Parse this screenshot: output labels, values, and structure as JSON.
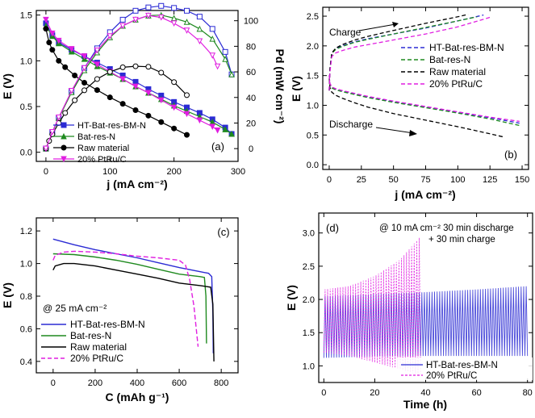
{
  "figure": "Four-panel electrochemical performance figure",
  "colors": {
    "ht": "#2b2bd4",
    "bat": "#1f8a1f",
    "raw": "#000000",
    "ptru": "#e01ee0",
    "ht_light": "#6c6cf0",
    "ptru_light": "#ff5cff"
  },
  "chart_data": [
    {
      "id": "a",
      "type": "line",
      "panel_label": "(a)",
      "xlabel": "j  (mA cm⁻²)",
      "ylabel": "E (V)",
      "y2label": "Pd (mW cm⁻²)",
      "xlim": [
        -15,
        300
      ],
      "ylim": [
        -0.1,
        1.55
      ],
      "y2lim": [
        -10,
        108
      ],
      "xticks": [
        0,
        100,
        200,
        300
      ],
      "yticks": [
        0.0,
        0.5,
        1.0,
        1.5
      ],
      "y2ticks": [
        0,
        20,
        40,
        60,
        80,
        100
      ],
      "legend": [
        "HT-Bat-res-BM-N",
        "Bat-res-N",
        "Raw material",
        "20% PtRu/C"
      ],
      "series": [
        {
          "name": "HT-Bat-res-BM-N",
          "color": "ht",
          "marker": "square",
          "axis": "left",
          "x": [
            0,
            10,
            20,
            40,
            60,
            80,
            100,
            120,
            140,
            160,
            180,
            200,
            220,
            240,
            260,
            280,
            290
          ],
          "y": [
            1.41,
            1.28,
            1.2,
            1.12,
            1.05,
            0.98,
            0.91,
            0.84,
            0.77,
            0.69,
            0.62,
            0.55,
            0.49,
            0.43,
            0.36,
            0.27,
            0.2
          ]
        },
        {
          "name": "Bat-res-N",
          "color": "bat",
          "marker": "triangle",
          "axis": "left",
          "x": [
            0,
            10,
            20,
            40,
            60,
            80,
            100,
            120,
            140,
            160,
            180,
            200,
            220,
            240,
            260,
            280,
            290
          ],
          "y": [
            1.38,
            1.27,
            1.19,
            1.1,
            1.02,
            0.94,
            0.87,
            0.8,
            0.72,
            0.65,
            0.58,
            0.51,
            0.45,
            0.39,
            0.33,
            0.25,
            0.2
          ]
        },
        {
          "name": "Raw material",
          "color": "raw",
          "marker": "circle",
          "axis": "left",
          "x": [
            0,
            5,
            10,
            20,
            30,
            45,
            60,
            80,
            100,
            120,
            140,
            160,
            180,
            200,
            220
          ],
          "y": [
            1.35,
            1.2,
            1.12,
            1.0,
            0.93,
            0.84,
            0.76,
            0.68,
            0.6,
            0.53,
            0.46,
            0.4,
            0.33,
            0.26,
            0.19
          ]
        },
        {
          "name": "20% PtRu/C",
          "color": "ptru",
          "marker": "triangle-down",
          "axis": "left",
          "x": [
            0,
            10,
            20,
            40,
            60,
            80,
            100,
            120,
            140,
            160,
            180,
            200,
            220,
            240,
            260,
            268
          ],
          "y": [
            1.45,
            1.3,
            1.22,
            1.13,
            1.05,
            0.96,
            0.88,
            0.8,
            0.72,
            0.65,
            0.57,
            0.49,
            0.42,
            0.35,
            0.28,
            0.24
          ]
        },
        {
          "name": "HT-Bat-res-BM-N Pd",
          "color": "ht",
          "marker": "square-open",
          "axis": "right",
          "x": [
            0,
            10,
            20,
            40,
            60,
            80,
            100,
            120,
            140,
            160,
            180,
            200,
            220,
            240,
            260,
            280,
            290
          ],
          "y": [
            0,
            12.8,
            24,
            44.8,
            63,
            78.4,
            91,
            100.8,
            107.8,
            110.4,
            111.6,
            110,
            107.8,
            103.2,
            93.6,
            75.6,
            58
          ]
        },
        {
          "name": "Bat-res-N Pd",
          "color": "bat",
          "marker": "triangle-open",
          "axis": "right",
          "x": [
            0,
            10,
            20,
            40,
            60,
            80,
            100,
            120,
            140,
            160,
            180,
            200,
            220,
            240,
            260,
            280,
            290
          ],
          "y": [
            0,
            12.7,
            23.8,
            44,
            61.2,
            75.2,
            87,
            96,
            100.8,
            104,
            104.4,
            102,
            99,
            93.6,
            85.8,
            70,
            58
          ]
        },
        {
          "name": "Raw material Pd",
          "color": "raw",
          "marker": "circle-open",
          "axis": "right",
          "x": [
            0,
            5,
            10,
            20,
            30,
            45,
            60,
            80,
            100,
            120,
            140,
            160,
            180,
            200,
            220
          ],
          "y": [
            0,
            6,
            11.2,
            20,
            27.9,
            37.8,
            45.6,
            54.4,
            60,
            63.6,
            64.4,
            64,
            59.4,
            52,
            41.8
          ]
        },
        {
          "name": "20% PtRu/C Pd",
          "color": "ptru",
          "marker": "triangle-down-open",
          "axis": "right",
          "x": [
            0,
            10,
            20,
            40,
            60,
            80,
            100,
            120,
            140,
            160,
            180,
            200,
            220,
            240,
            260,
            268
          ],
          "y": [
            0,
            13,
            24.4,
            45.2,
            63,
            76.8,
            88,
            96,
            100.8,
            104,
            102.6,
            98,
            92.4,
            84,
            72.8,
            64.3
          ]
        }
      ]
    },
    {
      "id": "b",
      "type": "line",
      "panel_label": "(b)",
      "xlabel": "j  (mA cm⁻²)",
      "ylabel": "E (V)",
      "xlim": [
        -5,
        155
      ],
      "ylim": [
        -0.08,
        2.65
      ],
      "xticks": [
        0,
        25,
        50,
        75,
        100,
        125,
        150
      ],
      "yticks": [
        0.0,
        0.5,
        1.0,
        1.5,
        2.0,
        2.5
      ],
      "legend": [
        "HT-Bat-res-BM-N",
        "Bat-res-N",
        "Raw material",
        "20% PtRu/C"
      ],
      "annotations": [
        "Charge",
        "Discharge"
      ],
      "series": [
        {
          "name": "HT-Bat-res-BM-N charge",
          "color": "ht",
          "x": [
            0,
            0.5,
            2,
            5,
            10,
            20,
            30,
            50,
            75,
            100,
            120
          ],
          "y": [
            1.25,
            1.6,
            1.88,
            1.95,
            2.0,
            2.07,
            2.12,
            2.2,
            2.3,
            2.42,
            2.52
          ]
        },
        {
          "name": "HT-Bat-res-BM-N discharge",
          "color": "ht",
          "x": [
            0,
            0.5,
            2,
            5,
            10,
            20,
            30,
            50,
            75,
            100,
            125,
            148
          ],
          "y": [
            1.5,
            1.36,
            1.3,
            1.27,
            1.24,
            1.19,
            1.14,
            1.06,
            0.97,
            0.88,
            0.79,
            0.7
          ]
        },
        {
          "name": "Bat-res-N charge",
          "color": "bat",
          "x": [
            0,
            0.5,
            2,
            5,
            10,
            20,
            30,
            50,
            75,
            100,
            115
          ],
          "y": [
            1.25,
            1.6,
            1.87,
            1.94,
            1.99,
            2.06,
            2.11,
            2.2,
            2.31,
            2.42,
            2.49
          ]
        },
        {
          "name": "Bat-res-N discharge",
          "color": "bat",
          "x": [
            0,
            0.5,
            2,
            5,
            10,
            20,
            30,
            50,
            75,
            100,
            125,
            148
          ],
          "y": [
            1.5,
            1.35,
            1.29,
            1.26,
            1.23,
            1.18,
            1.13,
            1.05,
            0.96,
            0.87,
            0.77,
            0.66
          ]
        },
        {
          "name": "Raw material charge",
          "color": "raw",
          "x": [
            0,
            0.5,
            2,
            5,
            10,
            20,
            30,
            50,
            75,
            100,
            108
          ],
          "y": [
            1.25,
            1.6,
            1.88,
            1.96,
            2.02,
            2.1,
            2.16,
            2.26,
            2.38,
            2.49,
            2.53
          ]
        },
        {
          "name": "Raw material discharge",
          "color": "raw",
          "x": [
            0,
            0.5,
            2,
            5,
            10,
            20,
            30,
            50,
            75,
            100,
            125,
            135
          ],
          "y": [
            1.45,
            1.3,
            1.22,
            1.17,
            1.12,
            1.04,
            0.97,
            0.86,
            0.75,
            0.64,
            0.52,
            0.47
          ]
        },
        {
          "name": "20% PtRu/C charge",
          "color": "ptru",
          "x": [
            0,
            0.5,
            2,
            5,
            10,
            20,
            30,
            50,
            75,
            100,
            125
          ],
          "y": [
            1.25,
            1.55,
            1.82,
            1.88,
            1.92,
            1.98,
            2.02,
            2.1,
            2.2,
            2.32,
            2.48
          ]
        },
        {
          "name": "20% PtRu/C discharge",
          "color": "ptru",
          "x": [
            0,
            0.5,
            2,
            5,
            10,
            20,
            30,
            50,
            75,
            100,
            125,
            148
          ],
          "y": [
            1.5,
            1.37,
            1.31,
            1.28,
            1.25,
            1.2,
            1.15,
            1.07,
            0.98,
            0.89,
            0.8,
            0.73
          ]
        }
      ]
    },
    {
      "id": "c",
      "type": "line",
      "panel_label": "(c)",
      "xlabel": "C (mAh g⁻¹)",
      "ylabel": "E (V)",
      "annotation": "@ 25 mA cm⁻²",
      "xlim": [
        -80,
        880
      ],
      "ylim": [
        0.33,
        1.28
      ],
      "xticks": [
        0,
        200,
        400,
        600,
        800
      ],
      "yticks": [
        0.4,
        0.6,
        0.8,
        1.0,
        1.2
      ],
      "legend": [
        "HT-Bat-res-BM-N",
        "Bat-res-N",
        "Raw material",
        "20% PtRu/C"
      ],
      "series": [
        {
          "name": "HT-Bat-res-BM-N",
          "color": "ht",
          "style": "solid",
          "x": [
            0,
            100,
            200,
            300,
            400,
            500,
            600,
            700,
            740,
            755,
            760,
            762
          ],
          "y": [
            1.15,
            1.115,
            1.085,
            1.06,
            1.035,
            1.005,
            0.975,
            0.95,
            0.94,
            0.92,
            0.7,
            0.45
          ]
        },
        {
          "name": "Bat-res-N",
          "color": "bat",
          "style": "solid",
          "x": [
            0,
            100,
            200,
            300,
            400,
            500,
            600,
            700,
            720,
            727,
            730
          ],
          "y": [
            1.06,
            1.055,
            1.04,
            1.02,
            0.995,
            0.965,
            0.935,
            0.92,
            0.915,
            0.8,
            0.51
          ]
        },
        {
          "name": "Raw material",
          "color": "raw",
          "style": "solid",
          "x": [
            0,
            10,
            50,
            100,
            200,
            300,
            400,
            500,
            600,
            700,
            750,
            760,
            765
          ],
          "y": [
            0.96,
            0.985,
            1.0,
            1.0,
            0.985,
            0.96,
            0.935,
            0.91,
            0.88,
            0.865,
            0.855,
            0.75,
            0.4
          ]
        },
        {
          "name": "20% PtRu/C",
          "color": "ptru",
          "style": "dashed",
          "x": [
            0,
            10,
            50,
            100,
            200,
            300,
            400,
            500,
            600,
            630,
            650,
            670,
            690
          ],
          "y": [
            1.02,
            1.05,
            1.07,
            1.075,
            1.07,
            1.06,
            1.045,
            1.035,
            1.02,
            0.99,
            0.9,
            0.74,
            0.49
          ]
        }
      ]
    },
    {
      "id": "d",
      "type": "line",
      "panel_label": "(d)",
      "xlabel": "Time (h)",
      "ylabel": "E (V)",
      "annotation_line1": "@ 10 mA cm⁻² 30 min discharge",
      "annotation_line2": "+ 30 min charge",
      "xlim": [
        -2,
        82
      ],
      "ylim": [
        0.75,
        3.3
      ],
      "xticks": [
        0,
        20,
        40,
        60,
        80
      ],
      "yticks": [
        1.0,
        1.5,
        2.0,
        2.5,
        3.0
      ],
      "legend": [
        "HT-Bat-res-BM-N",
        "20% PtRu/C"
      ],
      "series": [
        {
          "name": "HT-Bat-res-BM-N",
          "color": "ht",
          "t_start": 0,
          "t_end": 80,
          "cycle_h": 1,
          "upper_x": [
            0,
            20,
            40,
            60,
            80
          ],
          "upper_y": [
            2.05,
            2.08,
            2.11,
            2.15,
            2.2
          ],
          "lower_x": [
            0,
            20,
            40,
            60,
            80
          ],
          "lower_y": [
            1.12,
            1.14,
            1.15,
            1.15,
            1.15
          ]
        },
        {
          "name": "20% PtRu/C",
          "color": "ptru",
          "t_start": 0,
          "t_end": 38,
          "cycle_h": 1,
          "upper_x": [
            0,
            10,
            20,
            30,
            38
          ],
          "upper_y": [
            2.15,
            2.2,
            2.35,
            2.6,
            2.95
          ],
          "lower_x": [
            0,
            10,
            20,
            30,
            38
          ],
          "lower_y": [
            1.2,
            1.15,
            1.05,
            0.95,
            0.85
          ]
        }
      ]
    }
  ]
}
